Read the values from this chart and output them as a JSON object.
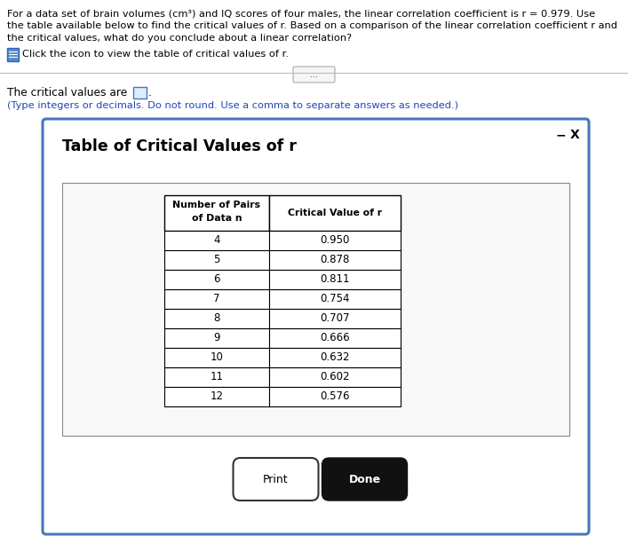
{
  "title_line1": "For a data set of brain volumes (cm³) and IQ scores of four males, the linear correlation coefficient is r = 0.979. Use",
  "title_line2": "the table available below to find the critical values of r. Based on a comparison of the linear correlation coefficient r and",
  "title_line3": "the critical values, what do you conclude about a linear correlation?",
  "icon_text": "Click the icon to view the table of critical values of r.",
  "answer_label": "The critical values are",
  "instruction_text": "(Type integers or decimals. Do not round. Use a comma to separate answers as needed.)",
  "dialog_title": "Table of Critical Values of r",
  "col1_header_line1": "Number of Pairs",
  "col1_header_line2": "of Data n",
  "col2_header": "Critical Value of r",
  "n_values": [
    4,
    5,
    6,
    7,
    8,
    9,
    10,
    11,
    12
  ],
  "r_values": [
    "0.950",
    "0.878",
    "0.811",
    "0.754",
    "0.707",
    "0.666",
    "0.632",
    "0.602",
    "0.576"
  ],
  "print_btn_text": "Print",
  "done_btn_text": "Done",
  "bg_color": "#ffffff",
  "dialog_border_color": "#4477bb",
  "instruction_color": "#2244bb",
  "dialog_title_color": "#000000",
  "minimize_text": "−",
  "close_text": "X"
}
